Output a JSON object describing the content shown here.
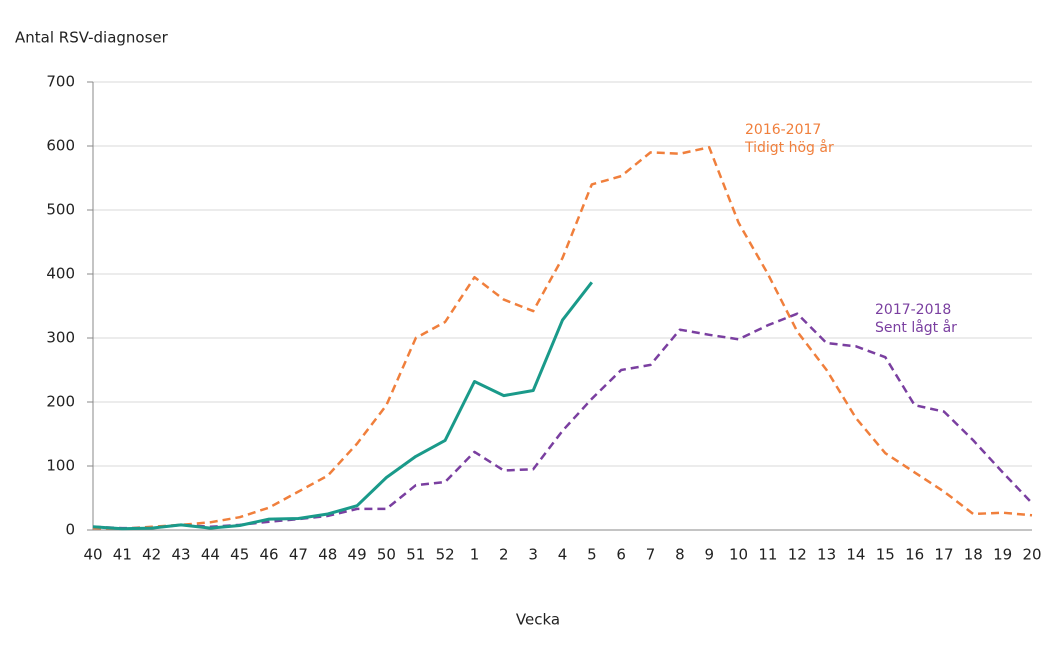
{
  "chart_data": {
    "type": "line",
    "ylabel": "Antal RSV-diagnoser",
    "xlabel": "Vecka",
    "categories": [
      "40",
      "41",
      "42",
      "43",
      "44",
      "45",
      "46",
      "47",
      "48",
      "49",
      "50",
      "51",
      "52",
      "1",
      "2",
      "3",
      "4",
      "5",
      "6",
      "7",
      "8",
      "9",
      "10",
      "11",
      "12",
      "13",
      "14",
      "15",
      "16",
      "17",
      "18",
      "19",
      "20"
    ],
    "series": [
      {
        "name": "2016-2017",
        "description": "Tidigt hög år",
        "color": "#f07f3c",
        "dashed": true,
        "values": [
          3,
          2,
          5,
          8,
          12,
          20,
          35,
          60,
          85,
          135,
          195,
          300,
          325,
          395,
          360,
          342,
          425,
          540,
          553,
          590,
          588,
          598,
          480,
          400,
          310,
          250,
          175,
          120,
          90,
          60,
          25,
          27,
          23
        ]
      },
      {
        "name": "2017-2018",
        "description": "Sent lågt år",
        "color": "#7a3fa0",
        "dashed": true,
        "values": [
          5,
          3,
          3,
          8,
          5,
          8,
          13,
          17,
          22,
          33,
          33,
          70,
          75,
          122,
          93,
          95,
          155,
          205,
          250,
          258,
          313,
          305,
          298,
          320,
          338,
          292,
          287,
          270,
          195,
          185,
          140,
          90,
          42
        ]
      },
      {
        "color": "#1a9a8a",
        "dashed": false,
        "values": [
          5,
          2,
          3,
          8,
          3,
          7,
          17,
          18,
          25,
          38,
          82,
          115,
          140,
          232,
          210,
          218,
          328,
          387,
          null,
          null,
          null,
          null,
          null,
          null,
          null,
          null,
          null,
          null,
          null,
          null,
          null,
          null,
          null
        ]
      }
    ],
    "ylim": [
      0,
      700
    ],
    "yticks": [
      0,
      100,
      200,
      300,
      400,
      500,
      600,
      700
    ],
    "grid": true
  }
}
